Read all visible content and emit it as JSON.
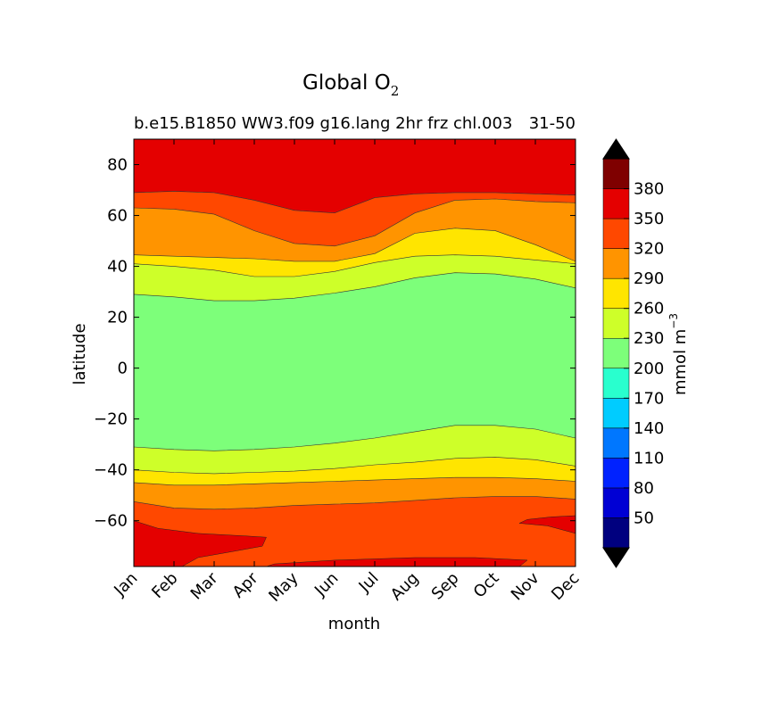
{
  "title_main": "Global O",
  "title_sub": "2",
  "subtitle_left": "b.e15.B1850 WW3.f09 g16.lang 2hr frz chl.003",
  "subtitle_right": "31-50",
  "chart_data": {
    "type": "contourf",
    "xlabel": "month",
    "ylabel": "latitude",
    "x_categories": [
      "Jan",
      "Feb",
      "Mar",
      "Apr",
      "May",
      "Jun",
      "Jul",
      "Aug",
      "Sep",
      "Oct",
      "Nov",
      "Dec"
    ],
    "y_ticks": [
      80,
      60,
      40,
      20,
      0,
      -20,
      -40,
      -60
    ],
    "y_tick_labels": [
      "80",
      "60",
      "40",
      "20",
      "0",
      "−20",
      "−40",
      "−60"
    ],
    "ylim": [
      -78,
      90
    ],
    "colorbar": {
      "label_main": "mmol m",
      "label_exp": "−3",
      "extend": "both",
      "levels": [
        20,
        50,
        80,
        110,
        140,
        170,
        200,
        230,
        260,
        290,
        320,
        350,
        380,
        410
      ],
      "tick_labels": [
        "50",
        "80",
        "110",
        "140",
        "170",
        "200",
        "230",
        "260",
        "290",
        "320",
        "350",
        "380"
      ],
      "colors": [
        "#00007f",
        "#0000d4",
        "#0022ff",
        "#0077ff",
        "#00ccff",
        "#29ffce",
        "#7dff7a",
        "#ceff29",
        "#ffe500",
        "#ff9400",
        "#ff4800",
        "#e40000",
        "#7f0000"
      ],
      "under_color": "#000000",
      "over_color": "#000000"
    },
    "contour_boundaries_lat": [
      {
        "between": "350-380 / 320-350 (north)",
        "lat": [
          69,
          69.5,
          69,
          66,
          62,
          61,
          67,
          68.5,
          69,
          69,
          68.5,
          68
        ]
      },
      {
        "between": "320-350 / 290-320 (north)",
        "lat": [
          63,
          62.5,
          60.5,
          54,
          49,
          48,
          52,
          61,
          66,
          66.5,
          65.5,
          65
        ]
      },
      {
        "between": "290-320 / 260-290 (north)",
        "lat": [
          44.5,
          44,
          43.5,
          43,
          42,
          42,
          45,
          53,
          55,
          54,
          48.5,
          42
        ]
      },
      {
        "between": "260-290 / 230-260 (north)",
        "lat": [
          41,
          40,
          38.5,
          36,
          36,
          38,
          41.5,
          44,
          44.5,
          44,
          42.5,
          41
        ]
      },
      {
        "between": "230-260 / 200-230 (north)",
        "lat": [
          29,
          28,
          26.5,
          26.5,
          27.5,
          29.5,
          32,
          35.5,
          37.5,
          37,
          35,
          31.5
        ]
      },
      {
        "between": "200-230 / 230-260 (south)",
        "lat": [
          -31,
          -32,
          -32.5,
          -32,
          -31,
          -29.5,
          -27.5,
          -25,
          -22.5,
          -22.5,
          -24,
          -27.5
        ]
      },
      {
        "between": "230-260 / 260-290 (south)",
        "lat": [
          -40,
          -41,
          -41.5,
          -41,
          -40.5,
          -39.5,
          -38,
          -37,
          -35.5,
          -35,
          -36,
          -38.5
        ]
      },
      {
        "between": "260-290 / 290-320 (south)",
        "lat": [
          -45,
          -46,
          -46,
          -45.5,
          -45,
          -44.5,
          -44,
          -43.5,
          -43,
          -43,
          -43.5,
          -44.5
        ]
      },
      {
        "between": "290-320 / 320-350 (south)",
        "lat": [
          -52.5,
          -55,
          -55.5,
          -55,
          -54,
          -53.5,
          -53,
          -52,
          -51,
          -50.5,
          -50.5,
          -51.5
        ]
      }
    ]
  }
}
